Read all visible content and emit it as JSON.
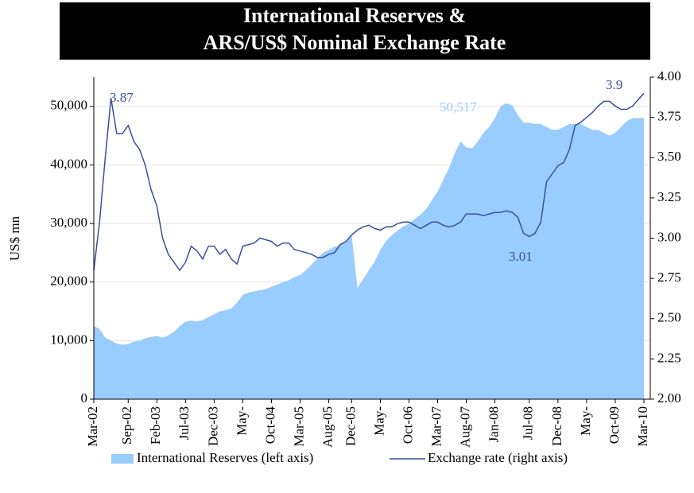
{
  "chart_data": {
    "type": "area-line",
    "title": [
      "International Reserves &",
      "ARS/US$ Nominal Exchange Rate"
    ],
    "ylabel": "US$ mn",
    "categories": [
      "Mar-02",
      null,
      null,
      null,
      null,
      null,
      "Sep-02",
      null,
      null,
      null,
      null,
      "Feb-03",
      null,
      null,
      null,
      null,
      "Jul-03",
      null,
      null,
      null,
      null,
      "Dec-03",
      null,
      null,
      null,
      null,
      "May-",
      null,
      null,
      null,
      null,
      "Oct-04",
      null,
      null,
      null,
      null,
      "Mar-05",
      null,
      null,
      null,
      null,
      "Aug-05",
      null,
      null,
      null,
      "Dec-05",
      null,
      null,
      null,
      null,
      "May-",
      null,
      null,
      null,
      null,
      "Oct-06",
      null,
      null,
      null,
      null,
      "Mar-07",
      null,
      null,
      null,
      null,
      "Aug-07",
      null,
      null,
      null,
      null,
      "Jan-08",
      null,
      null,
      null,
      null,
      null,
      "Jul-08",
      null,
      null,
      null,
      null,
      "Dec-08",
      null,
      null,
      null,
      null,
      "May-",
      null,
      null,
      null,
      null,
      "Oct-09",
      null,
      null,
      null,
      null,
      "Mar-10"
    ],
    "series": [
      {
        "name": "International Reserves (left axis)",
        "color": "#99ccff",
        "axis": "y",
        "values": [
          12500,
          12000,
          10500,
          10000,
          9500,
          9300,
          9400,
          9800,
          10000,
          10400,
          10600,
          10800,
          10500,
          10900,
          11500,
          12500,
          13200,
          13400,
          13300,
          13500,
          14000,
          14500,
          15000,
          15200,
          15500,
          16500,
          17800,
          18200,
          18400,
          18600,
          18800,
          19200,
          19600,
          20000,
          20300,
          20800,
          21200,
          22000,
          23000,
          24000,
          25000,
          25500,
          26000,
          26300,
          27000,
          28000,
          19000,
          20500,
          22000,
          23500,
          25500,
          27000,
          28000,
          28800,
          29500,
          30000,
          30800,
          31500,
          32500,
          34000,
          35500,
          37500,
          39500,
          42000,
          44000,
          43000,
          42800,
          44000,
          45500,
          46500,
          48000,
          50000,
          50517,
          50200,
          48500,
          47200,
          47200,
          47000,
          47000,
          46500,
          46000,
          46000,
          46500,
          47000,
          47000,
          47000,
          46500,
          46000,
          46000,
          45500,
          45000,
          45500,
          46500,
          47500,
          48000,
          48000,
          48000
        ]
      },
      {
        "name": "Exchange rate (right axis)",
        "color": "#3a4ea0",
        "axis": "y2",
        "values": [
          2.8,
          3.1,
          3.5,
          3.87,
          3.65,
          3.65,
          3.7,
          3.6,
          3.55,
          3.45,
          3.3,
          3.2,
          3.0,
          2.9,
          2.85,
          2.8,
          2.85,
          2.95,
          2.92,
          2.87,
          2.95,
          2.95,
          2.9,
          2.93,
          2.87,
          2.84,
          2.95,
          2.96,
          2.97,
          3.0,
          2.99,
          2.98,
          2.95,
          2.97,
          2.97,
          2.93,
          2.92,
          2.91,
          2.9,
          2.88,
          2.88,
          2.9,
          2.91,
          2.96,
          2.98,
          3.02,
          3.05,
          3.07,
          3.08,
          3.06,
          3.05,
          3.07,
          3.07,
          3.09,
          3.1,
          3.1,
          3.08,
          3.06,
          3.08,
          3.1,
          3.1,
          3.08,
          3.07,
          3.08,
          3.1,
          3.15,
          3.15,
          3.15,
          3.14,
          3.15,
          3.16,
          3.16,
          3.17,
          3.16,
          3.13,
          3.03,
          3.01,
          3.03,
          3.1,
          3.35,
          3.4,
          3.45,
          3.47,
          3.55,
          3.7,
          3.72,
          3.75,
          3.78,
          3.82,
          3.85,
          3.85,
          3.82,
          3.8,
          3.8,
          3.82,
          3.86,
          3.9
        ]
      }
    ],
    "ylim": [
      0,
      55000
    ],
    "yticks": [
      0,
      {
        "value": 10000,
        "label": "10,000"
      },
      {
        "value": 20000,
        "label": "20,000"
      },
      {
        "value": 30000,
        "label": "30,000"
      },
      {
        "value": 40000,
        "label": "40,000"
      },
      {
        "value": 50000,
        "label": "50,000"
      }
    ],
    "y2lim": [
      2,
      4
    ],
    "y2ticks": [
      {
        "value": 2,
        "label": "2.00"
      },
      {
        "value": 2.25,
        "label": "2.25"
      },
      {
        "value": 2.5,
        "label": "2.50"
      },
      {
        "value": 2.75,
        "label": "2.75"
      },
      {
        "value": 3,
        "label": "3.00"
      },
      {
        "value": 3.25,
        "label": "3.25"
      },
      {
        "value": 3.5,
        "label": "3.50"
      },
      {
        "value": 3.75,
        "label": "3.75"
      },
      {
        "value": 4,
        "label": "4.00"
      }
    ],
    "grid": true,
    "legend": "bottom",
    "annotations": [
      "3.87",
      "50,517",
      "3.01",
      "3.9"
    ]
  }
}
